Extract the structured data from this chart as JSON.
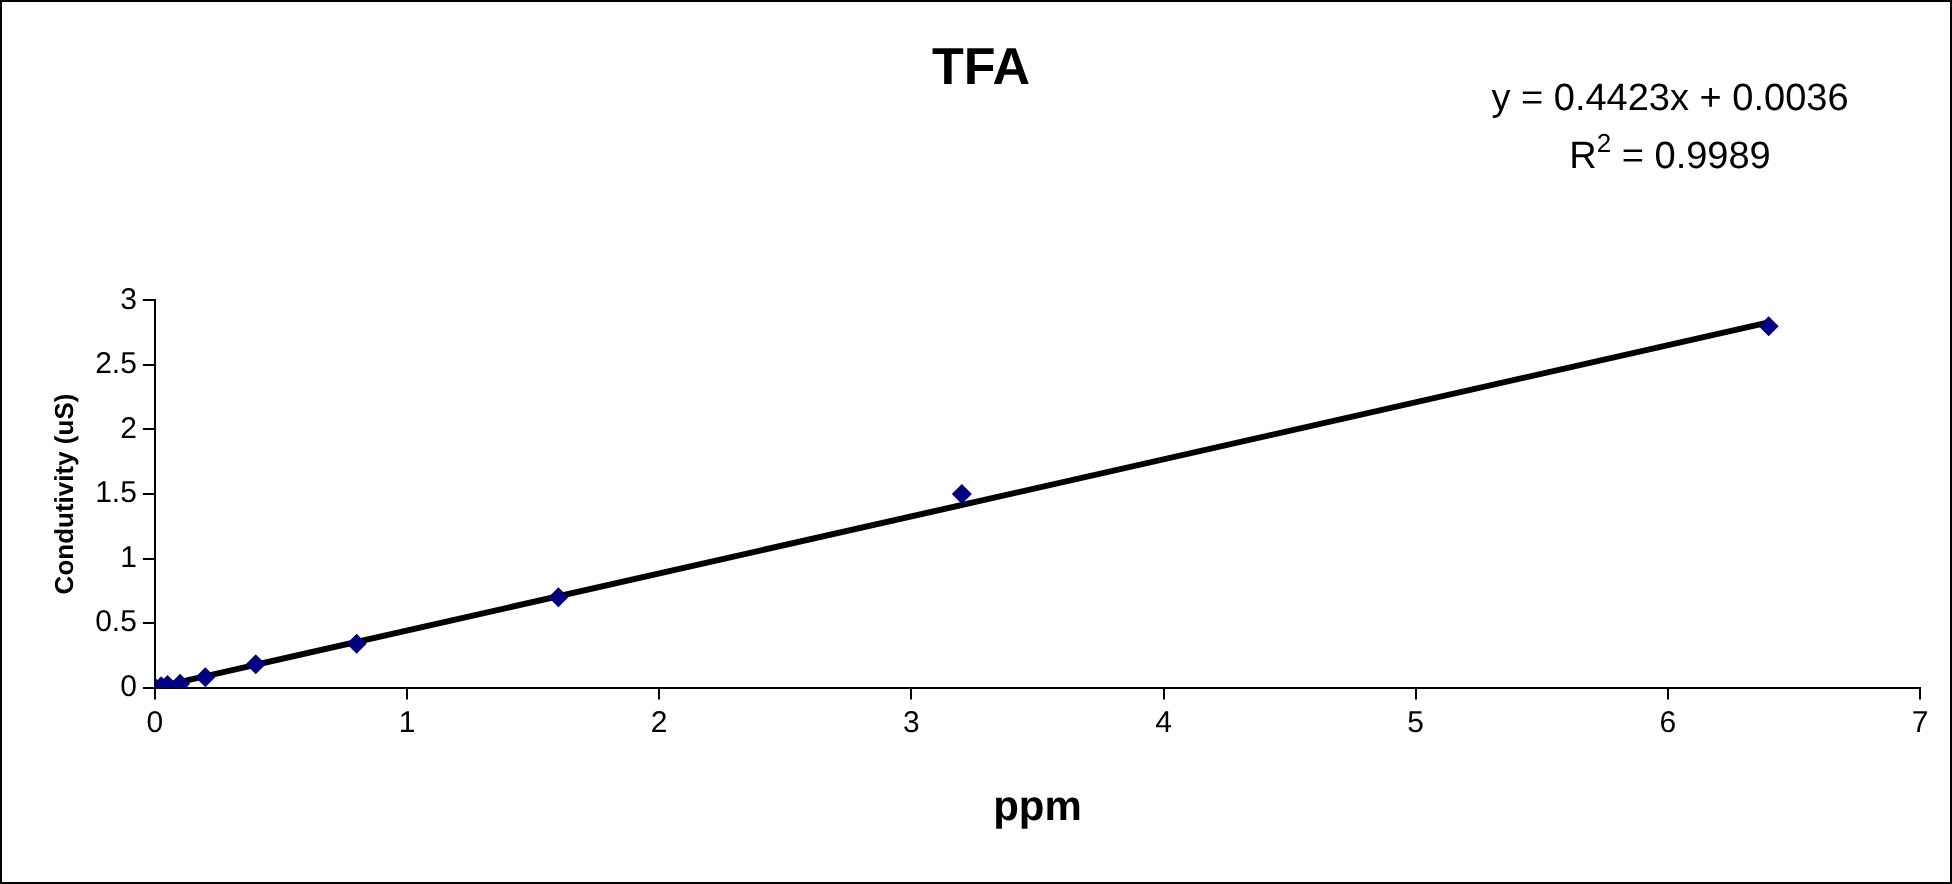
{
  "chart_data": {
    "type": "scatter",
    "title": "TFA",
    "xlabel": "ppm",
    "ylabel": "Condutivity (uS)",
    "series": [
      {
        "type": "scatter",
        "color": "#000080",
        "marker": "diamond",
        "x": [
          0,
          0.025,
          0.05,
          0.1,
          0.2,
          0.4,
          0.8,
          1.6,
          3.2,
          6.4
        ],
        "values": [
          0,
          0.01,
          0.02,
          0.03,
          0.08,
          0.18,
          0.34,
          0.7,
          1.5,
          2.8
        ]
      },
      {
        "type": "line",
        "color": "#000000",
        "marker": "none",
        "line_style": "solid",
        "x": [
          0,
          6.4
        ],
        "values": [
          0,
          2.83
        ]
      }
    ],
    "xlim": [
      0,
      7
    ],
    "xticks": [
      0,
      1,
      2,
      3,
      4,
      5,
      6,
      7
    ],
    "ylim": [
      0,
      3
    ],
    "yticks": [
      0,
      0.5,
      1,
      1.5,
      2,
      2.5,
      3
    ],
    "grid": false,
    "legend": false,
    "annotations": [
      "y = 0.4423x + 0.0036",
      "R$^{2}$ = 0.9989"
    ]
  }
}
